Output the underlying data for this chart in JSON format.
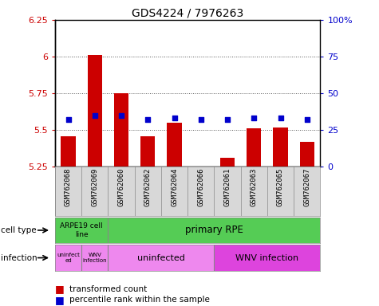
{
  "title": "GDS4224 / 7976263",
  "samples": [
    "GSM762068",
    "GSM762069",
    "GSM762060",
    "GSM762062",
    "GSM762064",
    "GSM762066",
    "GSM762061",
    "GSM762063",
    "GSM762065",
    "GSM762067"
  ],
  "transformed_count": [
    5.46,
    6.01,
    5.75,
    5.46,
    5.55,
    5.22,
    5.31,
    5.51,
    5.52,
    5.42
  ],
  "percentile_rank": [
    32,
    35,
    35,
    32,
    33,
    32,
    32,
    33,
    33,
    32
  ],
  "ylim": [
    5.25,
    6.25
  ],
  "yticks": [
    5.25,
    5.5,
    5.75,
    6.0,
    6.25
  ],
  "ytick_labels": [
    "5.25",
    "5.5",
    "5.75",
    "6",
    "6.25"
  ],
  "y2lim": [
    0,
    100
  ],
  "y2ticks": [
    0,
    25,
    50,
    75,
    100
  ],
  "y2tick_labels": [
    "0",
    "25",
    "50",
    "75",
    "100%"
  ],
  "bar_color": "#cc0000",
  "dot_color": "#0000cc",
  "bar_width": 0.55,
  "cell_type_label": "cell type",
  "infection_label": "infection",
  "background_color": "#ffffff",
  "grid_color": "#555555",
  "tick_label_color_left": "#cc0000",
  "tick_label_color_right": "#0000cc",
  "cell_type_row_colors": [
    "#55cc55",
    "#55cc55"
  ],
  "cell_type_row_labels": [
    "ARPE19 cell\nline",
    "primary RPE"
  ],
  "cell_type_row_starts": [
    0,
    2
  ],
  "cell_type_row_ends": [
    2,
    10
  ],
  "infection_row_labels": [
    "uninfect\ned",
    "WNV\ninfection",
    "uninfected",
    "WNV infection"
  ],
  "infection_row_starts": [
    0,
    1,
    2,
    6
  ],
  "infection_row_ends": [
    1,
    2,
    6,
    10
  ],
  "infection_row_colors": [
    "#ee88ee",
    "#ee44ee",
    "#ee88ee",
    "#dd44dd"
  ]
}
